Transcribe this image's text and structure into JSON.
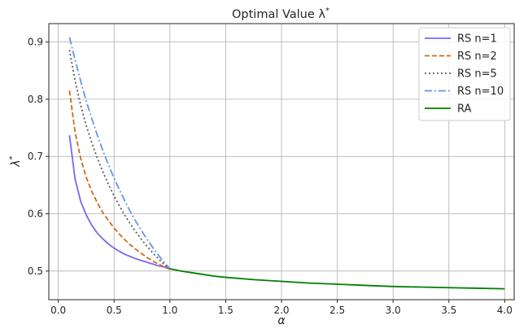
{
  "chart_data": {
    "type": "line",
    "title": "Optimal Value λ*",
    "title_main": "Optimal Value λ",
    "title_superscript": "*",
    "xlabel": "α",
    "ylabel": "λ",
    "ylabel_superscript": "*",
    "xlim": [
      -0.085,
      4.085
    ],
    "ylim": [
      0.45,
      0.932
    ],
    "xticks": [
      0.0,
      0.5,
      1.0,
      1.5,
      2.0,
      2.5,
      3.0,
      3.5,
      4.0
    ],
    "xtick_labels": [
      "0.0",
      "0.5",
      "1.0",
      "1.5",
      "2.0",
      "2.5",
      "3.0",
      "3.5",
      "4.0"
    ],
    "yticks": [
      0.5,
      0.6,
      0.7,
      0.8,
      0.9
    ],
    "ytick_labels": [
      "0.5",
      "0.6",
      "0.7",
      "0.8",
      "0.9"
    ],
    "grid": true,
    "legend_position": "top-right",
    "series": [
      {
        "name": "RS n=1",
        "color": "#7b68ee",
        "dash": "solid",
        "x": [
          0.1,
          0.15,
          0.2,
          0.25,
          0.3,
          0.35,
          0.4,
          0.45,
          0.5,
          0.55,
          0.6,
          0.65,
          0.7,
          0.75,
          0.8,
          0.85,
          0.9,
          0.95,
          1.0
        ],
        "y": [
          0.737,
          0.661,
          0.622,
          0.598,
          0.58,
          0.566,
          0.556,
          0.547,
          0.54,
          0.534,
          0.529,
          0.525,
          0.521,
          0.518,
          0.515,
          0.512,
          0.509,
          0.507,
          0.505
        ]
      },
      {
        "name": "RS n=2",
        "color": "#d2691e",
        "dash": "dashed",
        "x": [
          0.1,
          0.15,
          0.2,
          0.25,
          0.3,
          0.35,
          0.4,
          0.45,
          0.5,
          0.55,
          0.6,
          0.65,
          0.7,
          0.75,
          0.8,
          0.85,
          0.9,
          0.95,
          1.0
        ],
        "y": [
          0.815,
          0.743,
          0.697,
          0.664,
          0.639,
          0.619,
          0.602,
          0.588,
          0.575,
          0.564,
          0.554,
          0.545,
          0.537,
          0.53,
          0.523,
          0.517,
          0.512,
          0.507,
          0.503
        ]
      },
      {
        "name": "RS n=5",
        "color": "#595959",
        "dash": "dotted",
        "x": [
          0.1,
          0.15,
          0.2,
          0.25,
          0.3,
          0.35,
          0.4,
          0.45,
          0.5,
          0.55,
          0.6,
          0.65,
          0.7,
          0.75,
          0.8,
          0.85,
          0.9,
          0.95,
          1.0
        ],
        "y": [
          0.886,
          0.833,
          0.79,
          0.754,
          0.724,
          0.697,
          0.673,
          0.651,
          0.631,
          0.613,
          0.596,
          0.581,
          0.567,
          0.554,
          0.542,
          0.531,
          0.521,
          0.511,
          0.503
        ]
      },
      {
        "name": "RS n=10",
        "color": "#6495ed",
        "dash": "dashdot",
        "x": [
          0.1,
          0.15,
          0.2,
          0.25,
          0.3,
          0.35,
          0.4,
          0.45,
          0.5,
          0.55,
          0.6,
          0.65,
          0.7,
          0.75,
          0.8,
          0.85,
          0.9,
          0.95,
          1.0
        ],
        "y": [
          0.908,
          0.869,
          0.832,
          0.797,
          0.766,
          0.737,
          0.71,
          0.685,
          0.662,
          0.641,
          0.621,
          0.602,
          0.585,
          0.569,
          0.554,
          0.54,
          0.527,
          0.515,
          0.504
        ]
      },
      {
        "name": "RA",
        "color": "#008000",
        "dash": "solid",
        "x": [
          1.0,
          1.1,
          1.2,
          1.3,
          1.4,
          1.5,
          1.75,
          2.0,
          2.25,
          2.5,
          2.75,
          3.0,
          3.25,
          3.5,
          3.75,
          4.0
        ],
        "y": [
          0.504,
          0.5,
          0.497,
          0.494,
          0.491,
          0.489,
          0.485,
          0.482,
          0.479,
          0.477,
          0.475,
          0.473,
          0.472,
          0.471,
          0.47,
          0.469
        ]
      }
    ]
  }
}
